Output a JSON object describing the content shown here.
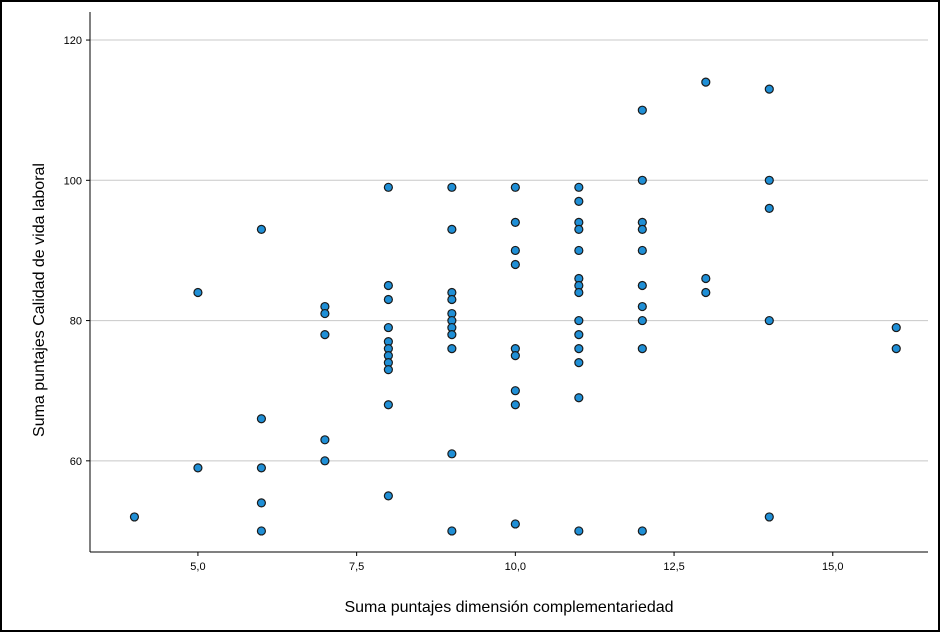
{
  "chart_data": {
    "type": "scatter",
    "xlabel": "Suma puntajes dimensión complementariedad",
    "ylabel": "Suma puntajes Calidad de vida laboral",
    "xlim": [
      3.3,
      16.5
    ],
    "ylim": [
      47,
      124
    ],
    "x_ticks": [
      5.0,
      7.5,
      10.0,
      12.5,
      15.0
    ],
    "x_tick_labels": [
      "5,0",
      "7,5",
      "10,0",
      "12,5",
      "15,0"
    ],
    "y_ticks": [
      60,
      80,
      100,
      120
    ],
    "y_tick_labels": [
      "60",
      "80",
      "100",
      "120"
    ],
    "grid": "horizontal",
    "marker_color": "#1f8fd6",
    "marker_edge": "#1a1a1a",
    "points": [
      [
        4,
        52
      ],
      [
        5,
        84
      ],
      [
        5,
        59
      ],
      [
        6,
        93
      ],
      [
        6,
        66
      ],
      [
        6,
        59
      ],
      [
        6,
        54
      ],
      [
        6,
        50
      ],
      [
        7,
        82
      ],
      [
        7,
        81
      ],
      [
        7,
        78
      ],
      [
        7,
        63
      ],
      [
        7,
        60
      ],
      [
        8,
        99
      ],
      [
        8,
        85
      ],
      [
        8,
        83
      ],
      [
        8,
        79
      ],
      [
        8,
        77
      ],
      [
        8,
        76
      ],
      [
        8,
        75
      ],
      [
        8,
        74
      ],
      [
        8,
        73
      ],
      [
        8,
        68
      ],
      [
        8,
        55
      ],
      [
        9,
        99
      ],
      [
        9,
        93
      ],
      [
        9,
        84
      ],
      [
        9,
        83
      ],
      [
        9,
        81
      ],
      [
        9,
        80
      ],
      [
        9,
        79
      ],
      [
        9,
        78
      ],
      [
        9,
        76
      ],
      [
        9,
        61
      ],
      [
        9,
        50
      ],
      [
        10,
        99
      ],
      [
        10,
        94
      ],
      [
        10,
        90
      ],
      [
        10,
        88
      ],
      [
        10,
        76
      ],
      [
        10,
        75
      ],
      [
        10,
        70
      ],
      [
        10,
        68
      ],
      [
        10,
        51
      ],
      [
        11,
        99
      ],
      [
        11,
        97
      ],
      [
        11,
        94
      ],
      [
        11,
        93
      ],
      [
        11,
        90
      ],
      [
        11,
        86
      ],
      [
        11,
        85
      ],
      [
        11,
        84
      ],
      [
        11,
        80
      ],
      [
        11,
        78
      ],
      [
        11,
        76
      ],
      [
        11,
        74
      ],
      [
        11,
        69
      ],
      [
        11,
        50
      ],
      [
        12,
        110
      ],
      [
        12,
        100
      ],
      [
        12,
        94
      ],
      [
        12,
        93
      ],
      [
        12,
        90
      ],
      [
        12,
        85
      ],
      [
        12,
        82
      ],
      [
        12,
        80
      ],
      [
        12,
        76
      ],
      [
        12,
        50
      ],
      [
        13,
        114
      ],
      [
        13,
        86
      ],
      [
        13,
        84
      ],
      [
        14,
        113
      ],
      [
        14,
        100
      ],
      [
        14,
        96
      ],
      [
        14,
        80
      ],
      [
        14,
        52
      ],
      [
        16,
        79
      ],
      [
        16,
        76
      ]
    ]
  }
}
